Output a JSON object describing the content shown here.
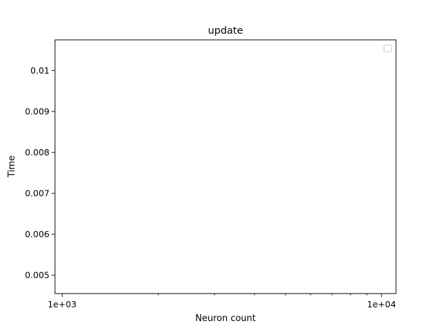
{
  "chart_data": {
    "type": "line",
    "title": "update",
    "xlabel": "Neuron count",
    "ylabel": "Time",
    "xscale": "log",
    "xlim": [
      950,
      11100
    ],
    "ylim": [
      0.00455,
      0.01075
    ],
    "x_ticks": [
      {
        "value": 1000,
        "label": "1e+03"
      },
      {
        "value": 10000,
        "label": "1e+04"
      }
    ],
    "y_ticks": [
      {
        "value": 0.005,
        "label": "0.005"
      },
      {
        "value": 0.006,
        "label": "0.006"
      },
      {
        "value": 0.007,
        "label": "0.007"
      },
      {
        "value": 0.008,
        "label": "0.008"
      },
      {
        "value": 0.009,
        "label": "0.009"
      },
      {
        "value": 0.01,
        "label": "0.01"
      }
    ],
    "grid": false,
    "legend": {
      "position": "top-right",
      "entries": []
    },
    "series": []
  }
}
